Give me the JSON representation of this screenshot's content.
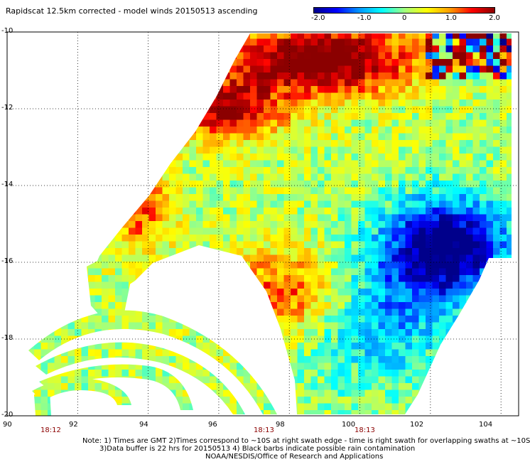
{
  "title": "Rapidscat 12.5km corrected - model winds 20150513 ascending",
  "colorbar": {
    "labels": [
      "-2.0",
      "-1.0",
      "0",
      "1.0",
      "2.0"
    ],
    "values": [
      -2.0,
      -1.0,
      0,
      1.0,
      2.0
    ],
    "min": -2.0,
    "max": 2.0,
    "colors": [
      "#00008b",
      "#0000ff",
      "#0096ff",
      "#00ffff",
      "#a0ff80",
      "#ffff00",
      "#ffa000",
      "#ff0000",
      "#8b0000"
    ]
  },
  "map": {
    "lat_labels": [
      "-10",
      "-12",
      "-14",
      "-16",
      "-18",
      "-20"
    ],
    "lat_values": [
      -10,
      -12,
      -14,
      -16,
      -18,
      -20
    ],
    "lon_labels": [
      "90",
      "92",
      "94",
      "96",
      "98",
      "100",
      "102",
      "104"
    ],
    "lon_values": [
      90,
      92,
      94,
      96,
      98,
      100,
      102,
      104
    ],
    "lat_range": [
      -10,
      -20
    ],
    "lon_range": [
      90,
      104.5
    ],
    "grid": "dotted",
    "times": [
      {
        "label": "18:12",
        "lon": 91
      },
      {
        "label": "18:13",
        "lon": 97.4
      },
      {
        "label": "18:13",
        "lon": 100.4
      }
    ]
  },
  "notes": {
    "line1": "Note: 1) Times are GMT 2)Times correspond to ~10S at right swath edge - time is right swath for overlapping swaths at ~10S",
    "line2": "3)Data buffer is 22 hrs for 20150513 4) Black barbs indicate possible rain contamination",
    "line3": "NOAA/NESDIS/Office of Research and Applications"
  }
}
